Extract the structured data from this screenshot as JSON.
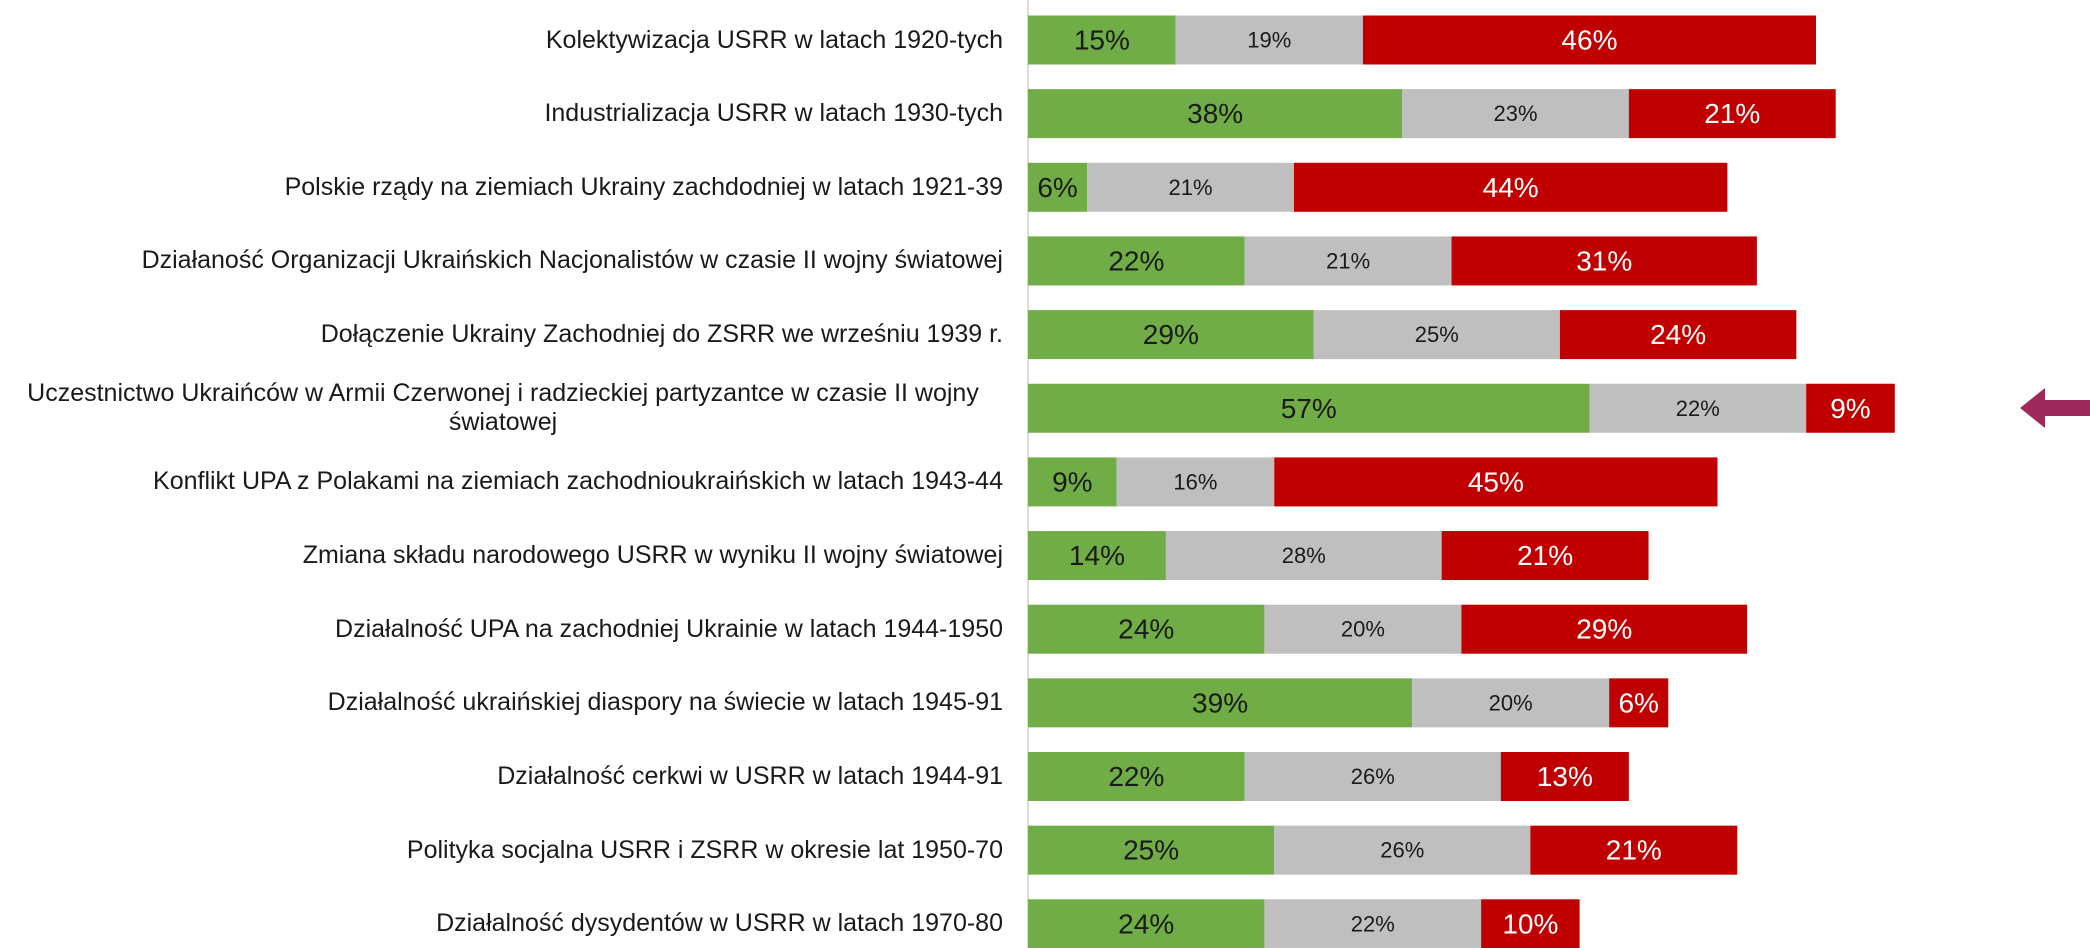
{
  "chart_data": {
    "type": "stacked-bar-horizontal",
    "categories": [
      "Kolektywizacja USRR w latach 1920-tych",
      "Industrializacja USRR w latach 1930-tych",
      "Polskie rządy na ziemiach Ukrainy zachdodniej w latach 1921-39",
      "Działaność Organizacji Ukraińskich Nacjonalistów w czasie II wojny światowej",
      "Dołączenie Ukrainy Zachodniej do ZSRR we wrześniu 1939 r.",
      "Uczestnictwo Ukraińców w Armii Czerwonej i radzieckiej partyzantce w czasie II wojny światowej",
      "Konflikt UPA z Polakami na ziemiach zachodnioukraińskich w latach 1943-44",
      "Zmiana składu narodowego USRR w wyniku II wojny światowej",
      "Działalność UPA na zachodniej Ukrainie w latach 1944-1950",
      "Działalność ukraińskiej diaspory na świecie w latach 1945-91",
      "Działalność cerkwi w USRR w latach 1944-91",
      "Polityka socjalna USRR i ZSRR w okresie lat 1950-70",
      "Działalność dysydentów w USRR w latach 1970-80"
    ],
    "series": [
      {
        "color": "#70ad47",
        "label_color": "#1a1a1a",
        "values": [
          15,
          38,
          6,
          22,
          29,
          57,
          9,
          14,
          24,
          39,
          22,
          25,
          24
        ],
        "value_labels": [
          "15%",
          "38%",
          "6%",
          "22%",
          "29%",
          "57%",
          "9%",
          "14%",
          "24%",
          "39%",
          "22%",
          "25%",
          "24%"
        ]
      },
      {
        "color": "#bfbfbf",
        "label_color": "#1a1a1a",
        "values": [
          19,
          23,
          21,
          21,
          25,
          22,
          16,
          28,
          20,
          20,
          26,
          26,
          22
        ],
        "value_labels": [
          "19%",
          "23%",
          "21%",
          "21%",
          "25%",
          "22%",
          "16%",
          "28%",
          "20%",
          "20%",
          "26%",
          "26%",
          "22%"
        ]
      },
      {
        "color": "#c00000",
        "label_color": "#ffffff",
        "values": [
          46,
          21,
          44,
          31,
          24,
          9,
          45,
          21,
          29,
          6,
          13,
          21,
          10
        ],
        "value_labels": [
          "46%",
          "21%",
          "44%",
          "31%",
          "24%",
          "9%",
          "45%",
          "21%",
          "29%",
          "6%",
          "13%",
          "21%",
          "10%"
        ]
      }
    ]
  }
}
